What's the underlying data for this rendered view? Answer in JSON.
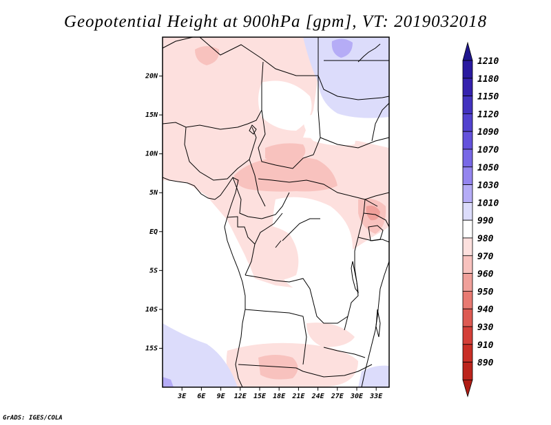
{
  "title": "Geopotential Height at 900hPa [gpm], VT: 2019032018",
  "footer": "GrADS: IGES/COLA",
  "map": {
    "lon_range": [
      0,
      35
    ],
    "lat_range": [
      -20,
      25
    ],
    "y_ticks": [
      {
        "lat": 20,
        "label": "20N"
      },
      {
        "lat": 15,
        "label": "15N"
      },
      {
        "lat": 10,
        "label": "10N"
      },
      {
        "lat": 5,
        "label": "5N"
      },
      {
        "lat": 0,
        "label": "EQ"
      },
      {
        "lat": -5,
        "label": "5S"
      },
      {
        "lat": -10,
        "label": "10S"
      },
      {
        "lat": -15,
        "label": "15S"
      }
    ],
    "x_ticks": [
      {
        "lon": 3,
        "label": "3E"
      },
      {
        "lon": 6,
        "label": "6E"
      },
      {
        "lon": 9,
        "label": "9E"
      },
      {
        "lon": 12,
        "label": "12E"
      },
      {
        "lon": 15,
        "label": "15E"
      },
      {
        "lon": 18,
        "label": "18E"
      },
      {
        "lon": 21,
        "label": "21E"
      },
      {
        "lon": 24,
        "label": "24E"
      },
      {
        "lon": 27,
        "label": "27E"
      },
      {
        "lon": 30,
        "label": "30E"
      },
      {
        "lon": 33,
        "label": "33E"
      }
    ]
  },
  "colorbar": {
    "levels": [
      {
        "label": "1210",
        "color": "#2a1aa0"
      },
      {
        "label": "1180",
        "color": "#3522ae"
      },
      {
        "label": "1150",
        "color": "#4232bf"
      },
      {
        "label": "1120",
        "color": "#5242cf"
      },
      {
        "label": "1090",
        "color": "#6452dc"
      },
      {
        "label": "1070",
        "color": "#7868e6"
      },
      {
        "label": "1050",
        "color": "#9485ef"
      },
      {
        "label": "1030",
        "color": "#b5acf6"
      },
      {
        "label": "1010",
        "color": "#dcdcfb"
      },
      {
        "label": "990",
        "color": "#ffffff"
      },
      {
        "label": "980",
        "color": "#fde0de"
      },
      {
        "label": "970",
        "color": "#f8c2be"
      },
      {
        "label": "960",
        "color": "#f0a09a"
      },
      {
        "label": "950",
        "color": "#e87a72"
      },
      {
        "label": "940",
        "color": "#dd5a52"
      },
      {
        "label": "930",
        "color": "#d43f38"
      },
      {
        "label": "910",
        "color": "#c92e26"
      },
      {
        "label": "890",
        "color": "#bc241c"
      }
    ],
    "top_tip_color": "#1f168e",
    "bottom_tip_color": "#b01c14"
  },
  "field_colors": {
    "land": "#ffffff",
    "pink_light": "#fde0de",
    "pink_mid": "#f8c2be",
    "pink_dark": "#f0a09a",
    "blue_light": "#dcdcfb",
    "blue_mid": "#b5acf6"
  }
}
